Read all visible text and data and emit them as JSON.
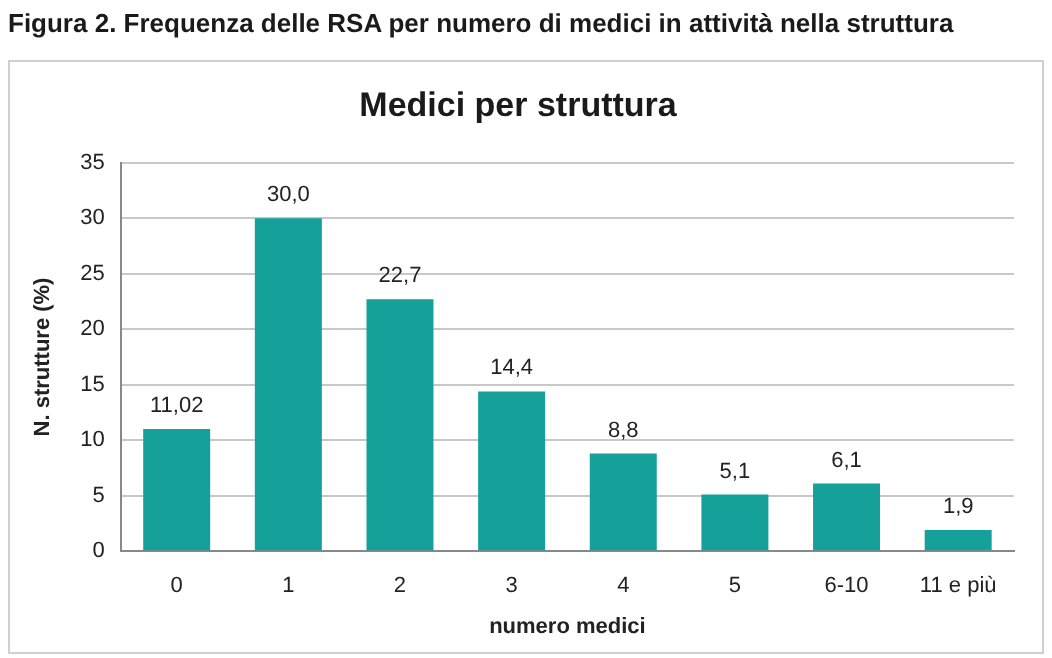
{
  "chart_data": {
    "type": "bar",
    "title": "Figura 2. Frequenza delle RSA per numero di medici in attività nella struttura",
    "subtitle": "Medici per struttura",
    "xlabel": "numero medici",
    "ylabel": "N. strutture (%)",
    "categories": [
      "0",
      "1",
      "2",
      "3",
      "4",
      "5",
      "6-10",
      "11 e più"
    ],
    "values": [
      11.02,
      30.0,
      22.7,
      14.4,
      8.8,
      5.1,
      6.1,
      1.9
    ],
    "value_labels": [
      "11,02",
      "30,0",
      "22,7",
      "14,4",
      "8,8",
      "5,1",
      "6,1",
      "1,9"
    ],
    "color": "#15a09a",
    "ylim": [
      0,
      35
    ],
    "yticks": [
      0,
      5,
      10,
      15,
      20,
      25,
      30,
      35
    ],
    "grid": "y",
    "legend": false
  }
}
